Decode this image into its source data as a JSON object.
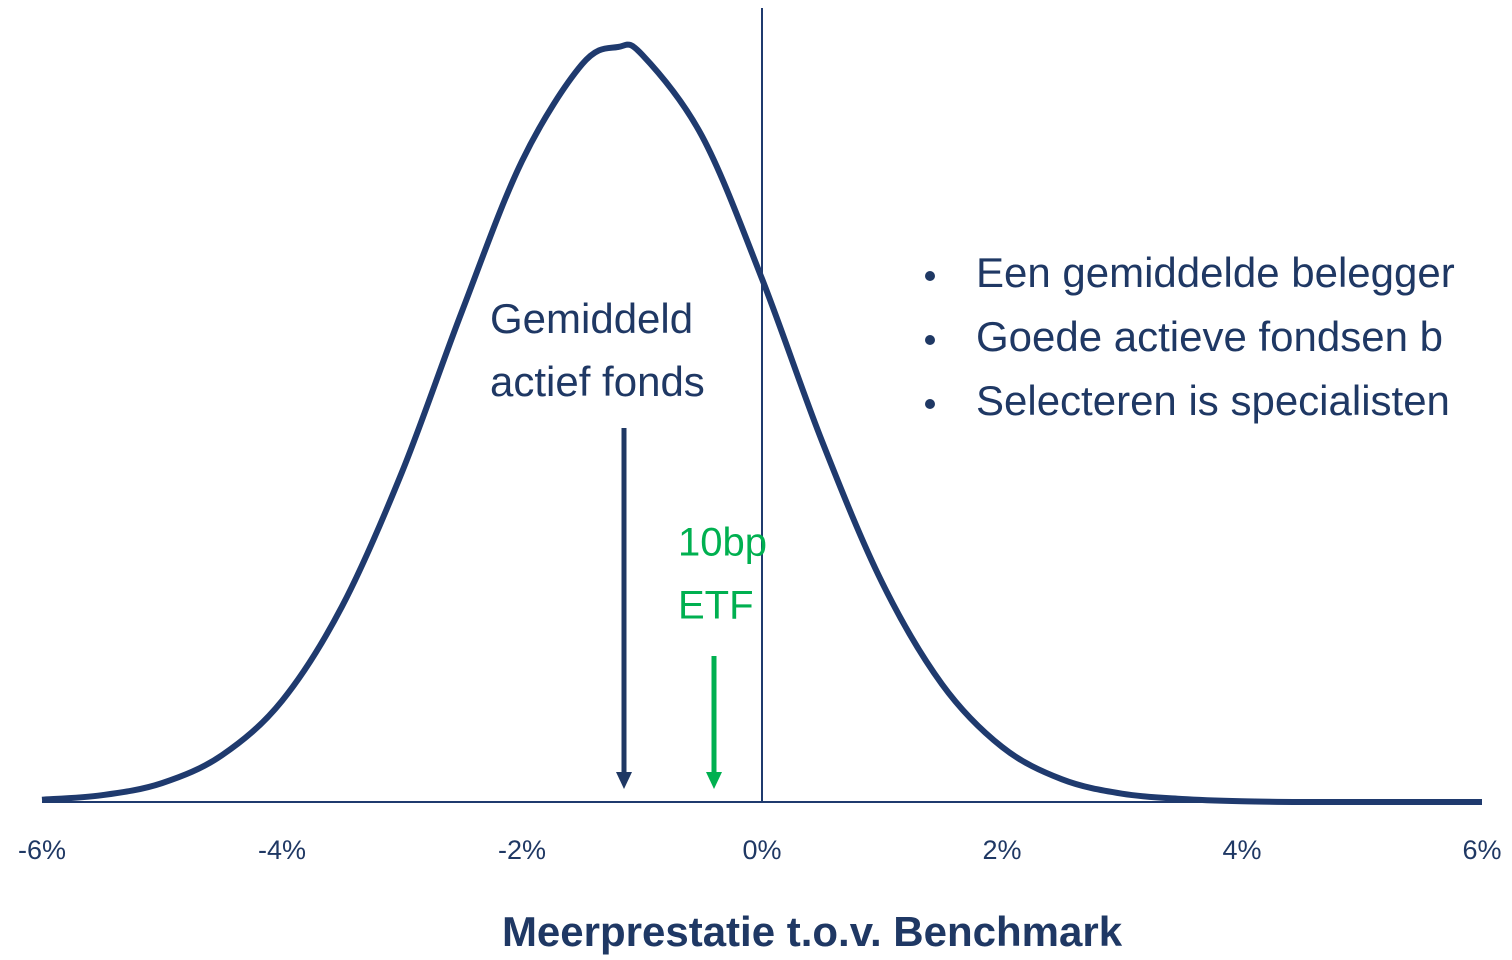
{
  "chart_data": {
    "type": "line",
    "title": "Meerprestatie t.o.v. Benchmark",
    "series": [
      {
        "name": null,
        "color": "#1f3a6e",
        "x": [
          -6,
          -5.5,
          -5,
          -4.5,
          -4,
          -3.5,
          -3,
          -2.5,
          -2,
          -1.5,
          -1.2,
          -1,
          -0.5,
          0,
          0.5,
          1,
          1.5,
          2,
          2.5,
          3,
          3.5,
          4,
          4.5,
          5,
          5.5,
          6
        ],
        "values": [
          0.003,
          0.009,
          0.025,
          0.062,
          0.134,
          0.259,
          0.437,
          0.65,
          0.849,
          0.977,
          1,
          0.99,
          0.882,
          0.693,
          0.478,
          0.291,
          0.156,
          0.073,
          0.03,
          0.011,
          0.004,
          0.001,
          0,
          0,
          0,
          0
        ]
      }
    ],
    "xlim": [
      -6,
      6
    ],
    "ylim": [
      0,
      1
    ],
    "xticks": [
      {
        "value": -6,
        "label": "-6%"
      },
      {
        "value": -4,
        "label": "-4%"
      },
      {
        "value": -2,
        "label": "-2%"
      },
      {
        "value": 0,
        "label": "0%"
      },
      {
        "value": 2,
        "label": "2%"
      },
      {
        "value": 4,
        "label": "4%"
      },
      {
        "value": 6,
        "label": "6%"
      }
    ],
    "reference_line_x": 0,
    "annotations": [
      {
        "lines": [
          "Gemiddeld",
          "actief fonds"
        ],
        "x": -1.15,
        "color": "#1f3864"
      },
      {
        "lines": [
          "10bp",
          "ETF"
        ],
        "x": -0.4,
        "color": "#00b050"
      }
    ],
    "bullets": [
      "Een gemiddelde belegger",
      "Goede actieve fondsen b",
      "Selecteren is specialisten"
    ]
  }
}
